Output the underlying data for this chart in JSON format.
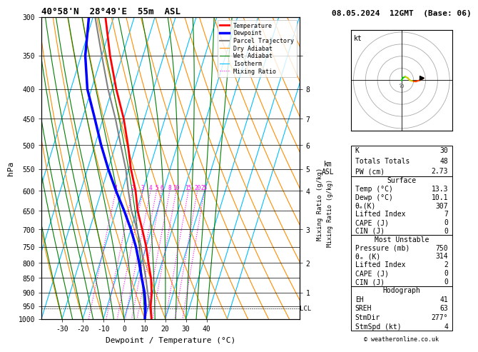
{
  "title_left": "40°58'N  28°49'E  55m  ASL",
  "title_right": "08.05.2024  12GMT  (Base: 06)",
  "xlabel": "Dewpoint / Temperature (°C)",
  "ylabel_left": "hPa",
  "background_color": "#ffffff",
  "dry_adiabat_color": "#ff8c00",
  "wet_adiabat_color": "#008000",
  "isotherm_color": "#00bfff",
  "mixing_ratio_color": "#ff00ff",
  "temp_color": "#ff0000",
  "dewpoint_color": "#0000ff",
  "parcel_color": "#808080",
  "legend_items": [
    {
      "label": "Temperature",
      "color": "#ff0000",
      "lw": 2.0,
      "ls": "-"
    },
    {
      "label": "Dewpoint",
      "color": "#0000ff",
      "lw": 2.5,
      "ls": "-"
    },
    {
      "label": "Parcel Trajectory",
      "color": "#808080",
      "lw": 1.5,
      "ls": "-"
    },
    {
      "label": "Dry Adiabat",
      "color": "#ff8c00",
      "lw": 0.8,
      "ls": "-"
    },
    {
      "label": "Wet Adiabat",
      "color": "#008000",
      "lw": 0.8,
      "ls": "-"
    },
    {
      "label": "Isotherm",
      "color": "#00bfff",
      "lw": 0.8,
      "ls": "-"
    },
    {
      "label": "Mixing Ratio",
      "color": "#ff00ff",
      "lw": 0.8,
      "ls": ":"
    }
  ],
  "pressure_levels": [
    300,
    350,
    400,
    450,
    500,
    550,
    600,
    650,
    700,
    750,
    800,
    850,
    900,
    950,
    1000
  ],
  "temp_profile": {
    "pressure": [
      1000,
      950,
      900,
      850,
      800,
      750,
      700,
      650,
      600,
      550,
      500,
      450,
      400,
      350,
      300
    ],
    "temperature": [
      13.3,
      11.0,
      9.5,
      7.0,
      3.5,
      0.0,
      -4.5,
      -9.5,
      -13.5,
      -19.0,
      -24.0,
      -30.0,
      -38.0,
      -46.0,
      -54.0
    ]
  },
  "dewpoint_profile": {
    "pressure": [
      1000,
      950,
      900,
      850,
      800,
      750,
      700,
      650,
      600,
      550,
      500,
      450,
      400,
      350,
      300
    ],
    "temperature": [
      10.1,
      8.5,
      6.0,
      2.5,
      -1.0,
      -5.0,
      -10.0,
      -16.0,
      -23.0,
      -30.0,
      -37.0,
      -44.0,
      -52.0,
      -58.0,
      -62.0
    ]
  },
  "parcel_profile": {
    "pressure": [
      1000,
      950,
      900,
      850,
      800,
      750,
      700,
      650,
      600,
      550,
      500,
      450,
      400,
      350,
      300
    ],
    "temperature": [
      13.3,
      10.5,
      7.5,
      4.5,
      1.0,
      -2.5,
      -7.0,
      -12.5,
      -17.0,
      -21.5,
      -27.5,
      -34.0,
      -42.0,
      -50.0,
      -59.0
    ]
  },
  "mixing_ratios": [
    1,
    2,
    3,
    4,
    5,
    6,
    8,
    10,
    15,
    20,
    25
  ],
  "lcl_pressure": 960,
  "km_ticks_p": [
    900,
    800,
    700,
    600,
    550,
    500,
    450,
    400,
    350
  ],
  "km_ticks_lbl": [
    "1",
    "2",
    "3",
    "4",
    "5",
    "6",
    "7",
    "8",
    ""
  ],
  "stats": {
    "K": 30,
    "TotalsT": 48,
    "PW": "2.73",
    "surf_temp": "13.3",
    "surf_dewp": "10.1",
    "surf_theta_e": 307,
    "surf_li": 7,
    "surf_cape": 0,
    "surf_cin": 0,
    "mu_pressure": 750,
    "mu_theta_e": 314,
    "mu_li": 2,
    "mu_cape": 0,
    "mu_cin": 0,
    "EH": 41,
    "SREH": 63,
    "StmDir": "277°",
    "StmSpd": 4
  }
}
